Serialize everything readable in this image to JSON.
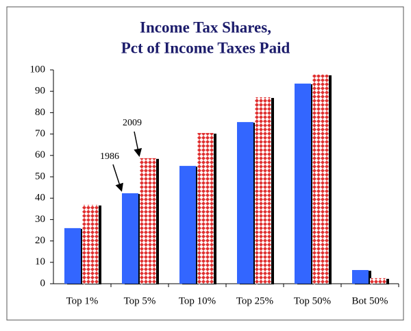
{
  "chart_data": {
    "type": "bar",
    "title": [
      "Income Tax Shares,",
      "Pct of Income Taxes Paid"
    ],
    "categories": [
      "Top 1%",
      "Top 5%",
      "Top 10%",
      "Top 25%",
      "Top 50%",
      "Bot 50%"
    ],
    "series": [
      {
        "name": "1986",
        "color": "#3366ff",
        "values": [
          26,
          42.3,
          55.1,
          75.6,
          93.6,
          6.4
        ]
      },
      {
        "name": "2009",
        "color": "#e03030",
        "values": [
          36.9,
          58.7,
          70.5,
          87.2,
          97.8,
          2.6
        ]
      }
    ],
    "ylim": [
      0,
      100
    ],
    "yticks": [
      0,
      10,
      20,
      30,
      40,
      50,
      60,
      70,
      80,
      90,
      100
    ],
    "grid": false
  }
}
